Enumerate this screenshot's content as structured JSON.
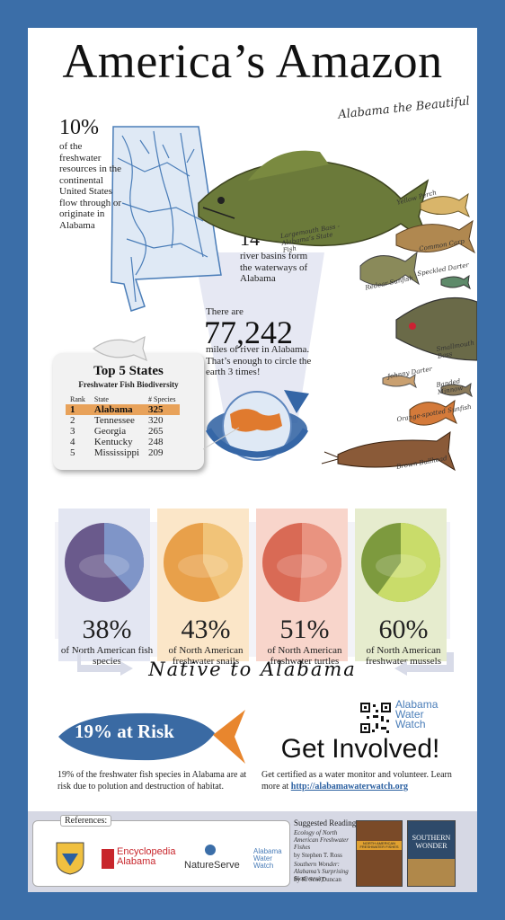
{
  "header": {
    "title": "America’s Amazon",
    "tagline": "Alabama the Beautiful"
  },
  "stat_freshwater": {
    "value": "10%",
    "text": "of the freshwater resources in the continental United States flow through or originate in Alabama"
  },
  "stat_basins": {
    "value": "14",
    "text": "river basins form the waterways of Alabama"
  },
  "stat_miles": {
    "prefix": "There are",
    "value": "77,242",
    "text": "miles of river in Alabama. That’s enough to circle the earth 3 times!"
  },
  "fish_labels": {
    "largemouth": "Largemouth Bass - Alabama’s State Fish",
    "yellow_perch": "Yellow Perch",
    "common_carp": "Common Carp",
    "redear": "Redear Sunfish",
    "speckled": "Speckled Darter",
    "smallmouth": "Smallmouth Bass",
    "johnny": "Johnny Darter",
    "banded": "Banded Minnow",
    "orange_spotted": "Orange-spotted Sunfish",
    "bullhead": "Brown Bullhead"
  },
  "top_states": {
    "title": "Top 5 States",
    "subtitle": "Freshwater Fish Biodiversity",
    "columns": [
      "Rank",
      "State",
      "# Species"
    ],
    "rows": [
      {
        "rank": "1",
        "state": "Alabama",
        "species": "325"
      },
      {
        "rank": "2",
        "state": "Tennessee",
        "species": "320"
      },
      {
        "rank": "3",
        "state": "Georgia",
        "species": "265"
      },
      {
        "rank": "4",
        "state": "Kentucky",
        "species": "248"
      },
      {
        "rank": "5",
        "state": "Mississippi",
        "species": "209"
      }
    ]
  },
  "native": {
    "heading": "Native to Alabama",
    "items": [
      {
        "pct": "38%",
        "label": "of North American fish species",
        "fraction": 0.38,
        "color_bg": "#6a5a8c",
        "color_fill": "#7f95c8",
        "panel": "#e3e6f2"
      },
      {
        "pct": "43%",
        "label": "of North American freshwater snails",
        "fraction": 0.43,
        "color_bg": "#e8a04a",
        "color_fill": "#f1c378",
        "panel": "#fbe6c8"
      },
      {
        "pct": "51%",
        "label": "of North American freshwater turtles",
        "fraction": 0.51,
        "color_bg": "#d96a55",
        "color_fill": "#e99380",
        "panel": "#f8d5cb"
      },
      {
        "pct": "60%",
        "label": "of North American freshwater mussels",
        "fraction": 0.6,
        "color_bg": "#7d9a3e",
        "color_fill": "#c9dc6a",
        "panel": "#e6ecce"
      }
    ]
  },
  "at_risk": {
    "value": "19% at Risk",
    "text": "19% of the freshwater fish species in Alabama are at risk due to polution and destruction of habitat."
  },
  "get_involved": {
    "heading": "Get Involved!",
    "text": "Get certified as a water monitor and volunteer. Learn more at",
    "link": "http://alabamawaterwatch.org",
    "logo": "Alabama Water Watch"
  },
  "references": {
    "label": "References:",
    "logos": [
      "Encyclopedia Alabama",
      "NatureServe",
      "Alabama Water Watch"
    ]
  },
  "reading": {
    "label": "Suggested Reading:",
    "books": [
      {
        "title": "Ecology of North American Freshwater Fishes",
        "author": "by Stephen T. Ross",
        "cover": "NORTH AMERICAN FRESHWATER FISHES"
      },
      {
        "title": "Southern Wonder: Alabama’s Surprising Biodiversity",
        "author": "by R. Scot Duncan",
        "cover": "SOUTHERN WONDER"
      }
    ]
  },
  "colors": {
    "frame": "#3b6ea8",
    "map_blue": "#4a7db8",
    "risk_fish": "#3a6aa3",
    "risk_tail": "#e8862e",
    "highlight": "#e8a25a"
  }
}
